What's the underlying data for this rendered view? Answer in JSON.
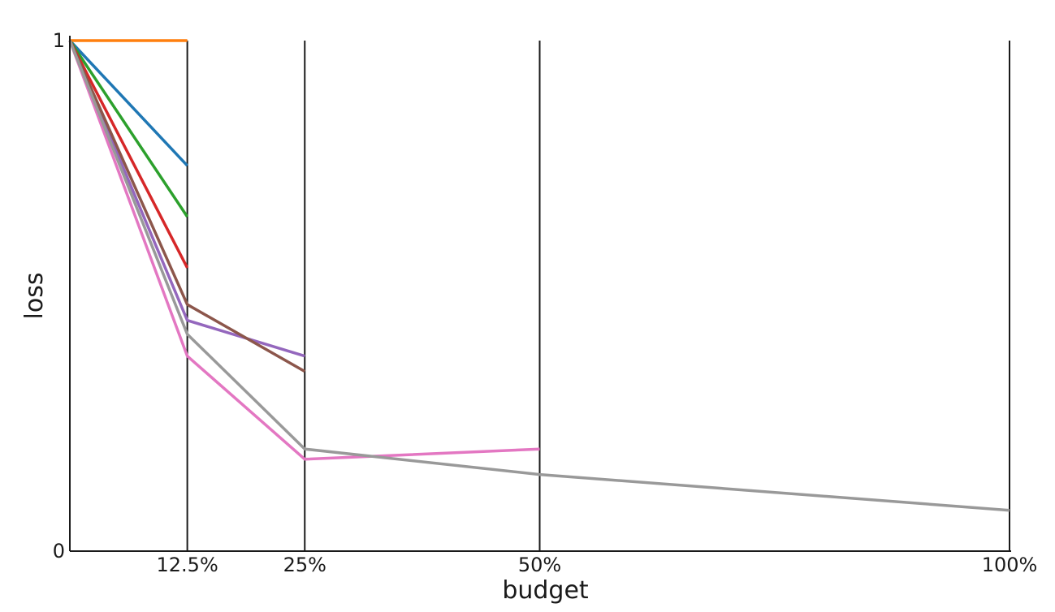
{
  "chart_data": {
    "type": "line",
    "title": "",
    "xlabel": "budget",
    "ylabel": "loss",
    "xlim": [
      0,
      100
    ],
    "ylim": [
      0,
      1
    ],
    "x_ticks": [
      12.5,
      25,
      50,
      100
    ],
    "x_tick_labels": [
      "12.5%",
      "25%",
      "50%",
      "100%"
    ],
    "y_ticks": [
      0,
      1
    ],
    "y_tick_labels": [
      "0",
      "1"
    ],
    "grid": "vertical lines at x ticks",
    "legend": "none",
    "series": [
      {
        "color": "#1f77b4",
        "x": [
          0,
          12.5
        ],
        "y": [
          1.0,
          0.755
        ]
      },
      {
        "color": "#ff7f0e",
        "x": [
          0,
          12.5
        ],
        "y": [
          1.0,
          1.0
        ]
      },
      {
        "color": "#2ca02c",
        "x": [
          0,
          12.5
        ],
        "y": [
          1.0,
          0.655
        ]
      },
      {
        "color": "#d62728",
        "x": [
          0,
          12.5
        ],
        "y": [
          1.0,
          0.555
        ]
      },
      {
        "color": "#9467bd",
        "x": [
          0,
          12.5,
          25
        ],
        "y": [
          1.0,
          0.452,
          0.382
        ]
      },
      {
        "color": "#8c564b",
        "x": [
          0,
          12.5,
          25
        ],
        "y": [
          1.0,
          0.483,
          0.352
        ]
      },
      {
        "color": "#e377c2",
        "x": [
          0,
          12.5,
          25,
          50
        ],
        "y": [
          1.0,
          0.382,
          0.18,
          0.2
        ]
      },
      {
        "color": "#999999",
        "x": [
          0,
          12.5,
          25,
          50,
          100
        ],
        "y": [
          1.0,
          0.425,
          0.2,
          0.15,
          0.08
        ]
      }
    ]
  }
}
